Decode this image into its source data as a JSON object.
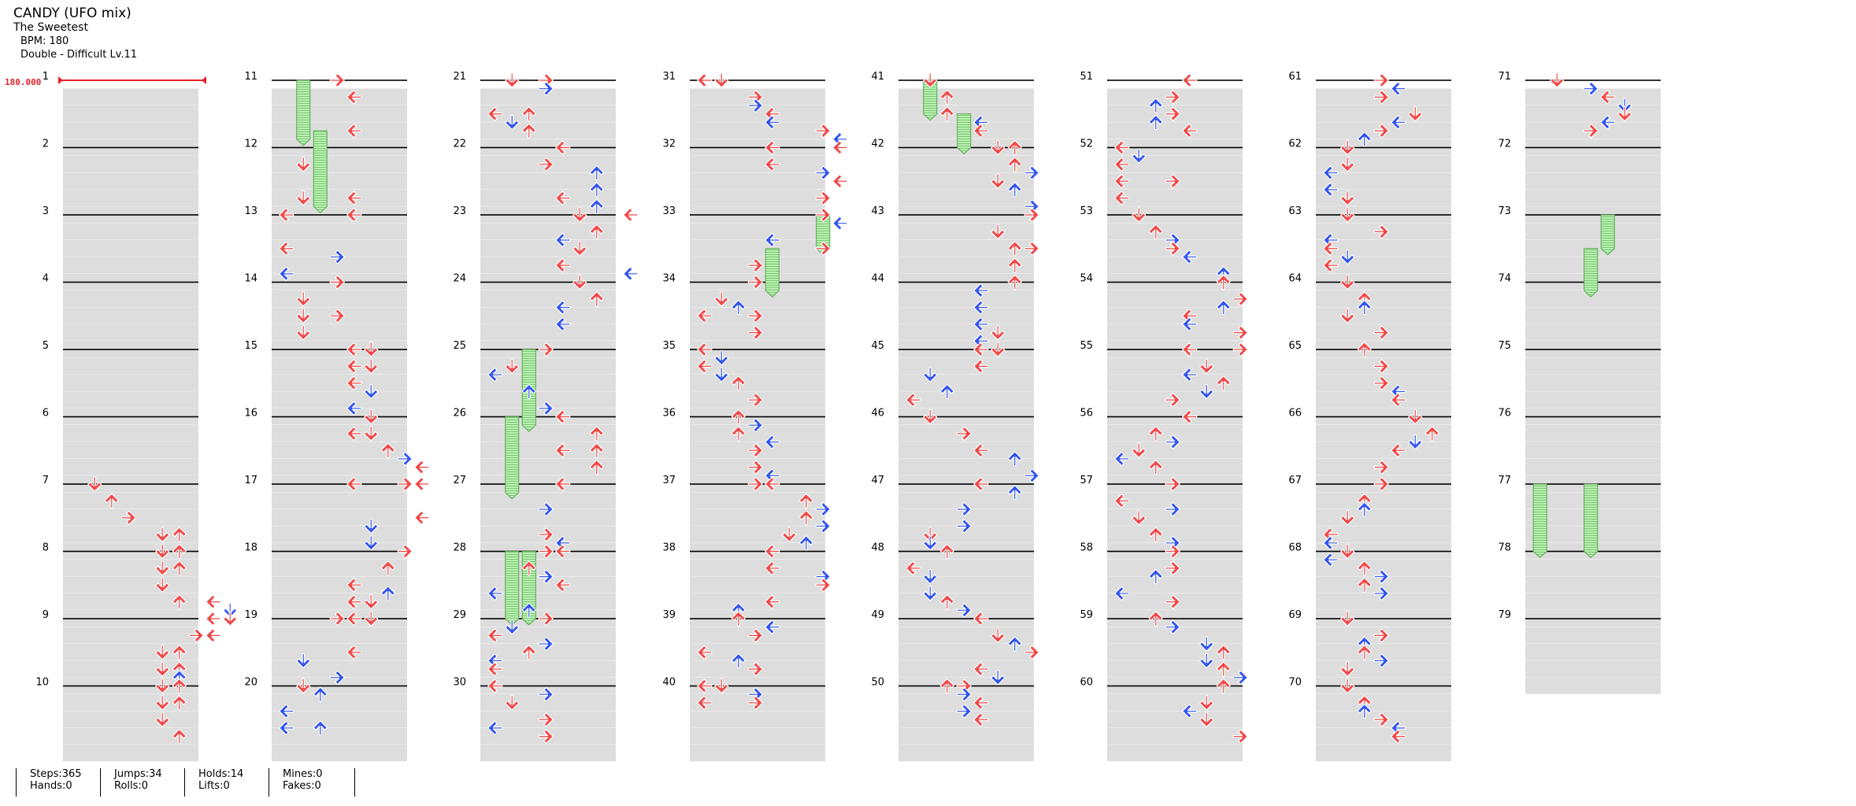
{
  "header": {
    "title": "CANDY (UFO mix)",
    "artist": "The Sweetest",
    "bpm": "BPM: 180",
    "difficulty": "Double - Difficult  Lv.11"
  },
  "bpm_marker": "180.000",
  "measures": [
    "1",
    "2",
    "3",
    "4",
    "5",
    "6",
    "7",
    "8",
    "9",
    "10",
    "11",
    "12",
    "13",
    "14",
    "15",
    "16",
    "17",
    "18",
    "19",
    "20",
    "21",
    "22",
    "23",
    "24",
    "25",
    "26",
    "27",
    "28",
    "29",
    "30",
    "31",
    "32",
    "33",
    "34",
    "35",
    "36",
    "37",
    "38",
    "39",
    "40",
    "41",
    "42",
    "43",
    "44",
    "45",
    "46",
    "47",
    "48",
    "49",
    "50",
    "51",
    "52",
    "53",
    "54",
    "55",
    "56",
    "57",
    "58",
    "59",
    "60",
    "61",
    "62",
    "63",
    "64",
    "65",
    "66",
    "67",
    "68",
    "69",
    "70",
    "71",
    "72",
    "73",
    "74",
    "75",
    "76",
    "77",
    "78",
    "79"
  ],
  "stats": [
    {
      "a": "Steps:365",
      "b": "Hands:0"
    },
    {
      "a": "Jumps:34",
      "b": "Rolls:0"
    },
    {
      "a": "Holds:14",
      "b": "Lifts:0"
    },
    {
      "a": "Mines:0",
      "b": "Fakes:0"
    }
  ],
  "colors": {
    "red_note": "#f04848",
    "blue_note": "#3355ee",
    "hold": "#a6e6a0",
    "row_shade": "#dddddd",
    "bpm": "#e8202a"
  },
  "notes": "7:0.0:1 7:0.25:2 7:0.5:3 7:0.75:5 7:0.75:6 8:0:5 8:0:6 8:0.25:5 8:0.25:6 8:0.5:5 8:0.75:6 8:0.75:8 8:0.875:9 9:0:8 9:0:9 9:0.25:7 9:0.25:8 9:0.5:5 9:0.5:6 9:0.75:5 9:0.75:6 9:0.75:5 9:0.875:6 10:0:5 10:0:6 10:0.25:5 10:0.25:6 10:0.5:5 10:0.75:6 11:0:3 11:0.25:4 11:0.75:4 12:0.25:1 12:0.75:1 12:0.75:4 13:0:0 13:0:4 13:0.5:0 13:0.625:3 13:0.875:0 14:0:3 14:0.25:1 14:0.5:1 14:0.5:3 14:0.75:1 15:0:4 15:0:5 15:0.25:4 15:0.25:5 15:0.5:4 15:0.625:5 15:0.875:4 16:0:5 16:0.25:4 16:0.25:5 16:0.5:6 16:0.625:7 16:0.75:8 17:0:4 17:0:7 17:0:8 17:0.5:8 17:0.625:5 17:0.875:5 18:0:7 18:0.25:6 18:0.5:4 18:0.625:6 18:0.75:4 18:0.75:5 19:0:3 19:0:4 19:0:5 19:0.5:4 19:0.625:1 19:0.875:3 20:0:1 20:0.125:2 20:0.375:0 20:0.625:0 20:0.625:2 21:0:1 21:0:3 21:0.125:3 21:0.5:0 21:0.5:2 21:0.625:1 21:0.75:2 22:0:4 22:0.25:3 22:0.375:6 22:0.625:6 22:0.75:4 22:0.875:6 23:0:5 23:0:8 23:0.25:6 23:0.375:4 23:0.5:5 23:0.75:4 23:0.875:8 24:0:5 24:0.25:6 24:0.375:4 24:0.625:4 25:0:3 25:0.25:1 25:0.375:0 25:0.625:2 25:0.875:3 26:0:4 26:0.25:6 26:0.5:4 26:0.5:6 26:0.75:6 27:0:4 27:0.375:3 27:0.75:3 27:0.875:4 28:0:3 28:0:4 28:0.25:2 28:0.375:3 28:0.5:4 28:0.625:0 28:0.875:2 29:0:3 29:0.125:1 29:0.25:0 29:0.375:3 29:0.5:2 29:0.625:0 29:0.75:0 30:0:0 30:0.125:3 30:0.25:1 30:0.5:3 30:0.625:0 30:0.75:3 31:0:0 31:0:1 31:0.25:3 31:0.375:3 31:0.5:4 31:0.625:4 31:0.75:7 31:0.875:8 32:0:4 32:0:8 32:0.25:4 32:0.375:7 32:0.5:8 32:0.75:7 33:0:7 33:0.125:8 33:0.375:4 33:0.5:7 33:0.75:3 34:0:3 34:0.25:1 34:0.375:2 34:0.5:0 34:0.5:3 34:0.75:3 35:0:0 35:0.125:1 35:0.25:0 35:0.375:1 35:0.5:2 35:0.75:3 36:0:2 36:0.125:3 36:0.25:2 36:0.375:4 36:0.5:3 36:0.75:3 36:0.875:4 37:0:3 37:0:4 37:0.25:6 37:0.375:7 37:0.5:6 37:0.625:7 37:0.75:5 37:0.875:6 38:0:4 38:0.25:4 38:0.375:7 38:0.5:7 38:0.75:4 38:0.875:2 39:0:2 39:0.125:4 39:0.25:3 39:0.5:0 39:0.625:2 39:0.75:3 40:0:0 40:0:1 40:0.125:3 40:0.25:0 40:0.25:3 41:0:1 41:0.25:2 41:0.5:2 41:0.625:4 41:0.75:4 42:0:5 42:0:6 42:0.25:6 42:0.375:7 42:0.5:5 42:0.625:6 42:0.875:7 43:0:7 43:0.25:5 43:0.5:6 43:0.5:7 43:0.75:6 44:0:6 44:0.125:4 44:0.375:4 44:0.625:4 44:0.75:5 44:0.875:4 45:0:4 45:0:5 45:0.25:4 45:0.375:1 45:0.625:2 45:0.75:0 46:0:1 46:0.25:3 46:0.5:4 46:0.625:6 46:0.875:7 47:0:4 47:0.125:6 47:0.375:3 47:0.625:3 47:0.75:1 47:0.875:1 48:0:2 48:0.25:0 48:0.375:1 48:0.625:1 48:0.75:2 48:0.875:3 49:0:4 49:0.25:5 49:0.375:6 49:0.5:7 49:0.75:4 49:0.875:5 50:0:2 50:0:3 50:0.125:3 50:0.25:4 50:0.375:3 50:0.5:4 51:0:4 51:0.25:3 51:0.375:2 51:0.5:3 51:0.625:2 51:0.75:4 52:0:0 52:0.125:1 52:0.25:0 52:0.5:0 52:0.5:3 52:0.75:0 53:0:1 53:0.25:2 53:0.375:3 53:0.5:3 53:0.625:4 53:0.875:6 54:0:6 54:0.25:7 54:0.375:6 54:0.5:4 54:0.625:4 54:0.75:7 55:0:4 55:0:7 55:0.25:5 55:0.375:4 55:0.5:6 55:0.625:5 55:0.75:3 56:0:4 56:0.25:2 56:0.375:3 56:0.5:1 56:0.625:0 56:0.75:2 57:0:3 57:0.25:0 57:0.375:3 57:0.5:1 57:0.75:2 57:0.875:3 58:0:3 58:0.25:3 58:0.375:2 58:0.625:0 58:0.75:3 59:0:2 59:0.125:3 59:0.375:5 59:0.5:6 59:0.625:5 59:0.75:6 59:0.875:7 60:0:6 60:0.25:5 60:0.375:4 60:0.5:5 60:0.75:7 61:0:3 61:0.125:4 61:0.25:3 61:0.5:5 61:0.625:4 61:0.75:3 61:0.875:2 62:0:1 62:0.25:1 62:0.375:0 62:0.625:0 62:0.75:1 63:0:1 63:0.25:3 63:0.375:0 63:0.5:0 63:0.625:1 63:0.75:0 64:0:1 64:0.25:2 64:0.375:2 64:0.5:1 64:0.75:3 65:0:2 65:0.25:3 65:0.5:3 65:0.625:4 65:0.75:4 66:0:5 66:0.25:6 66:0.375:5 66:0.5:4 66:0.75:3 67:0:3 67:0.25:2 67:0.375:2 67:0.5:1 67:0.75:0 67:0.875:0 68:0:1 68:0.125:0 68:0.25:2 68:0.375:3 68:0.5:2 68:0.625:3 69:0:1 69:0.25:3 69:0.375:2 69:0.5:2 69:0.625:3 69:0.75:1 70:0:1 70:0.25:2 70:0.375:2 70:0.5:3 70:0.625:4 70:0.75:4 71:0:1 71:0.125:3 71:0.25:4 71:0.375:5 71:0.5:5 71:0.625:4 71:0.75:3",
  "holds": "11:0:11:0.875:1 11:0.75:12:0.875:2 25:0:26:0.125:2 26:0:27:0.125:1 28:0:29:0:1 28:0:29:0:2 33:0:33:0.5:7 33:0.5:34:0.125:4 41:0:41:0.5:1 41:0.5:42:0:3 73:0:73:0.5:4 73:0.5:74:0.125:3 77:0:78:0:0 77:0:78:0:3"
}
